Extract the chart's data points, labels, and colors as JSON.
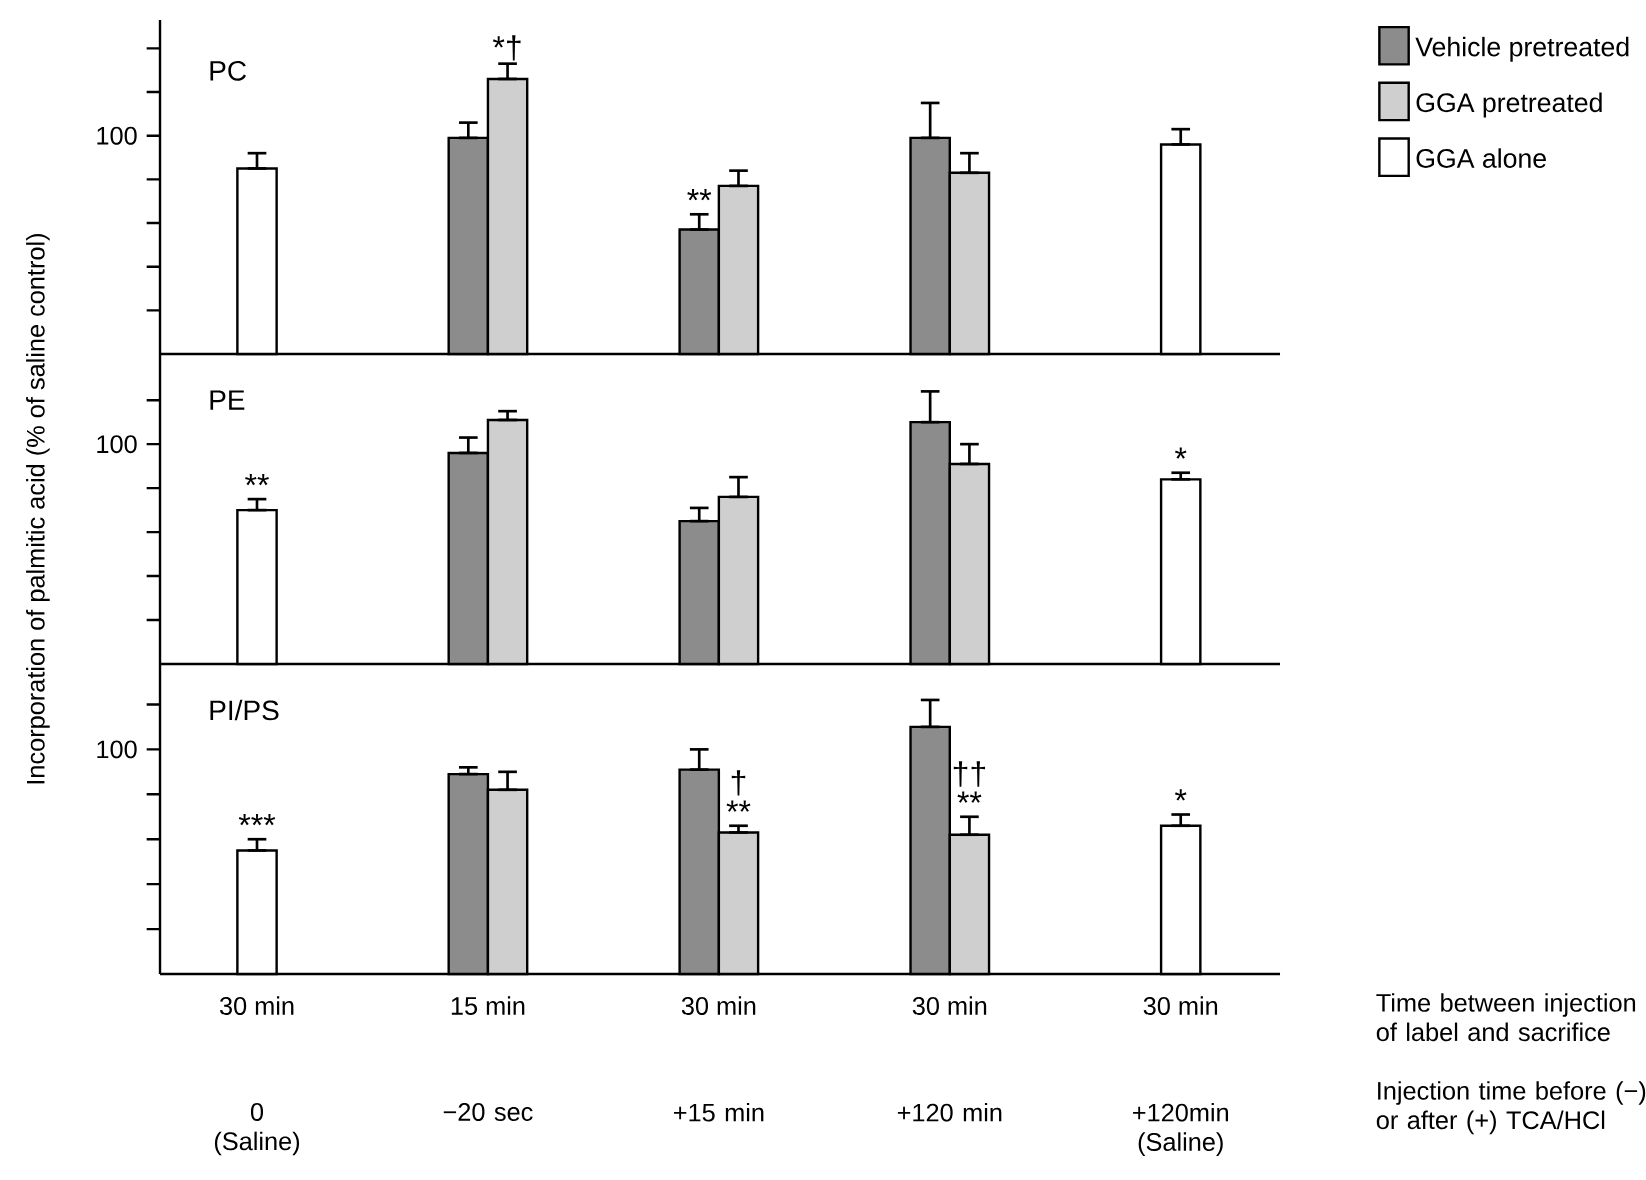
{
  "chart_data": [
    {
      "type": "bar",
      "title": "PC",
      "categories": [
        "0 (Saline)",
        "−20 sec",
        "+15 min",
        "+120 min",
        "+120min (Saline)"
      ],
      "tick_labels": "y",
      "legend": "top right",
      "series": [
        {
          "name": "Vehicle pretreated",
          "color": "#8c8c8c",
          "values": [
            null,
            99,
            57,
            99,
            null
          ],
          "errors": [
            null,
            [
              99,
              106
            ],
            [
              57,
              64
            ],
            [
              99,
              115
            ],
            null
          ]
        },
        {
          "name": "GGA pretreated",
          "color": "#cfcfcf",
          "values": [
            null,
            126,
            77,
            83,
            null
          ],
          "errors": [
            null,
            [
              126,
              133
            ],
            [
              77,
              84
            ],
            [
              83,
              92
            ],
            null
          ]
        },
        {
          "name": "GGA alone",
          "color": "#ffffff",
          "values": [
            85,
            null,
            null,
            null,
            96
          ],
          "errors": [
            [
              85,
              92
            ],
            null,
            null,
            null,
            [
              96,
              103
            ]
          ]
        }
      ],
      "ylim": [
        0,
        153
      ],
      "yticks": [
        {
          "value": 20,
          "label": null
        },
        {
          "value": 40,
          "label": null
        },
        {
          "value": 60,
          "label": null
        },
        {
          "value": 80,
          "label": null
        },
        100,
        {
          "value": 120,
          "label": null
        },
        {
          "value": 140,
          "label": null
        }
      ],
      "annotations": [
        {
          "text": "*†",
          "x": "−20 sec",
          "y": 126
        },
        {
          "text": "**",
          "x": "+15 min",
          "y": 64
        }
      ]
    },
    {
      "type": "bar",
      "title": "PE",
      "categories": [
        "0 (Saline)",
        "−20 sec",
        "+15 min",
        "+120 min",
        "+120min (Saline)"
      ],
      "tick_labels": "y",
      "ylabel": "Incorporation of palmitic acid (% of saline control)",
      "series": [
        {
          "color": "#8c8c8c",
          "values": [
            null,
            96,
            65,
            110,
            null
          ],
          "errors": [
            null,
            [
              96,
              103
            ],
            [
              65,
              71
            ],
            [
              110,
              124
            ],
            null
          ]
        },
        {
          "color": "#cfcfcf",
          "values": [
            null,
            111,
            76,
            91,
            null
          ],
          "errors": [
            null,
            [
              111,
              115
            ],
            [
              76,
              85
            ],
            [
              91,
              100
            ],
            null
          ]
        },
        {
          "color": "#ffffff",
          "values": [
            70,
            null,
            null,
            null,
            84
          ],
          "errors": [
            [
              70,
              75
            ],
            null,
            null,
            null,
            [
              84,
              87
            ]
          ]
        }
      ],
      "ylim": [
        0,
        141
      ],
      "yticks": [
        {
          "value": 20,
          "label": null
        },
        {
          "value": 40,
          "label": null
        },
        {
          "value": 60,
          "label": null
        },
        {
          "value": 80,
          "label": null
        },
        100,
        {
          "value": 120,
          "label": null
        }
      ],
      "annotations": [
        {
          "text": "**",
          "x": "0 (Saline)",
          "y": 75
        },
        {
          "text": "*",
          "x": "+120min (Saline)",
          "y": 87
        }
      ]
    },
    {
      "type": "bar",
      "title": "PI/PS",
      "categories": [
        "0 (Saline)",
        "−20 sec",
        "+15 min",
        "+120 min",
        "+120min (Saline)"
      ],
      "xlabel": "Injection time before (−) or after (+) TCA/HCl",
      "series": [
        {
          "color": "#8c8c8c",
          "values": [
            null,
            89,
            91,
            110,
            null
          ],
          "errors": [
            null,
            [
              89,
              92
            ],
            [
              91,
              100
            ],
            [
              110,
              122
            ],
            null
          ]
        },
        {
          "color": "#cfcfcf",
          "values": [
            null,
            82,
            63,
            62,
            null
          ],
          "errors": [
            null,
            [
              82,
              90
            ],
            [
              63,
              66
            ],
            [
              62,
              70
            ],
            null
          ]
        },
        {
          "color": "#ffffff",
          "values": [
            55,
            null,
            null,
            null,
            66
          ],
          "errors": [
            [
              55,
              60
            ],
            null,
            null,
            null,
            [
              66,
              71
            ]
          ]
        }
      ],
      "ylim": [
        0,
        138
      ],
      "yticks": [
        {
          "value": 20,
          "label": null
        },
        {
          "value": 40,
          "label": null
        },
        {
          "value": 60,
          "label": null
        },
        {
          "value": 80,
          "label": null
        },
        100,
        {
          "value": 120,
          "label": null
        }
      ],
      "annotations": [
        {
          "text": "***",
          "x": "0 (Saline)",
          "y": 60
        },
        {
          "text": "**",
          "x": "+15 min",
          "y": 66
        },
        {
          "text": "†",
          "x": "+15 min",
          "y": 78
        },
        {
          "text": "**",
          "x": "+120 min",
          "y": 70
        },
        {
          "text": "††",
          "x": "+120 min",
          "y": 82
        },
        {
          "text": "*",
          "x": "+120min (Saline)",
          "y": 71
        },
        "30 min",
        "15 min",
        "30 min",
        "30 min",
        "30 min",
        "Time between injection of label and sacrifice"
      ]
    }
  ]
}
